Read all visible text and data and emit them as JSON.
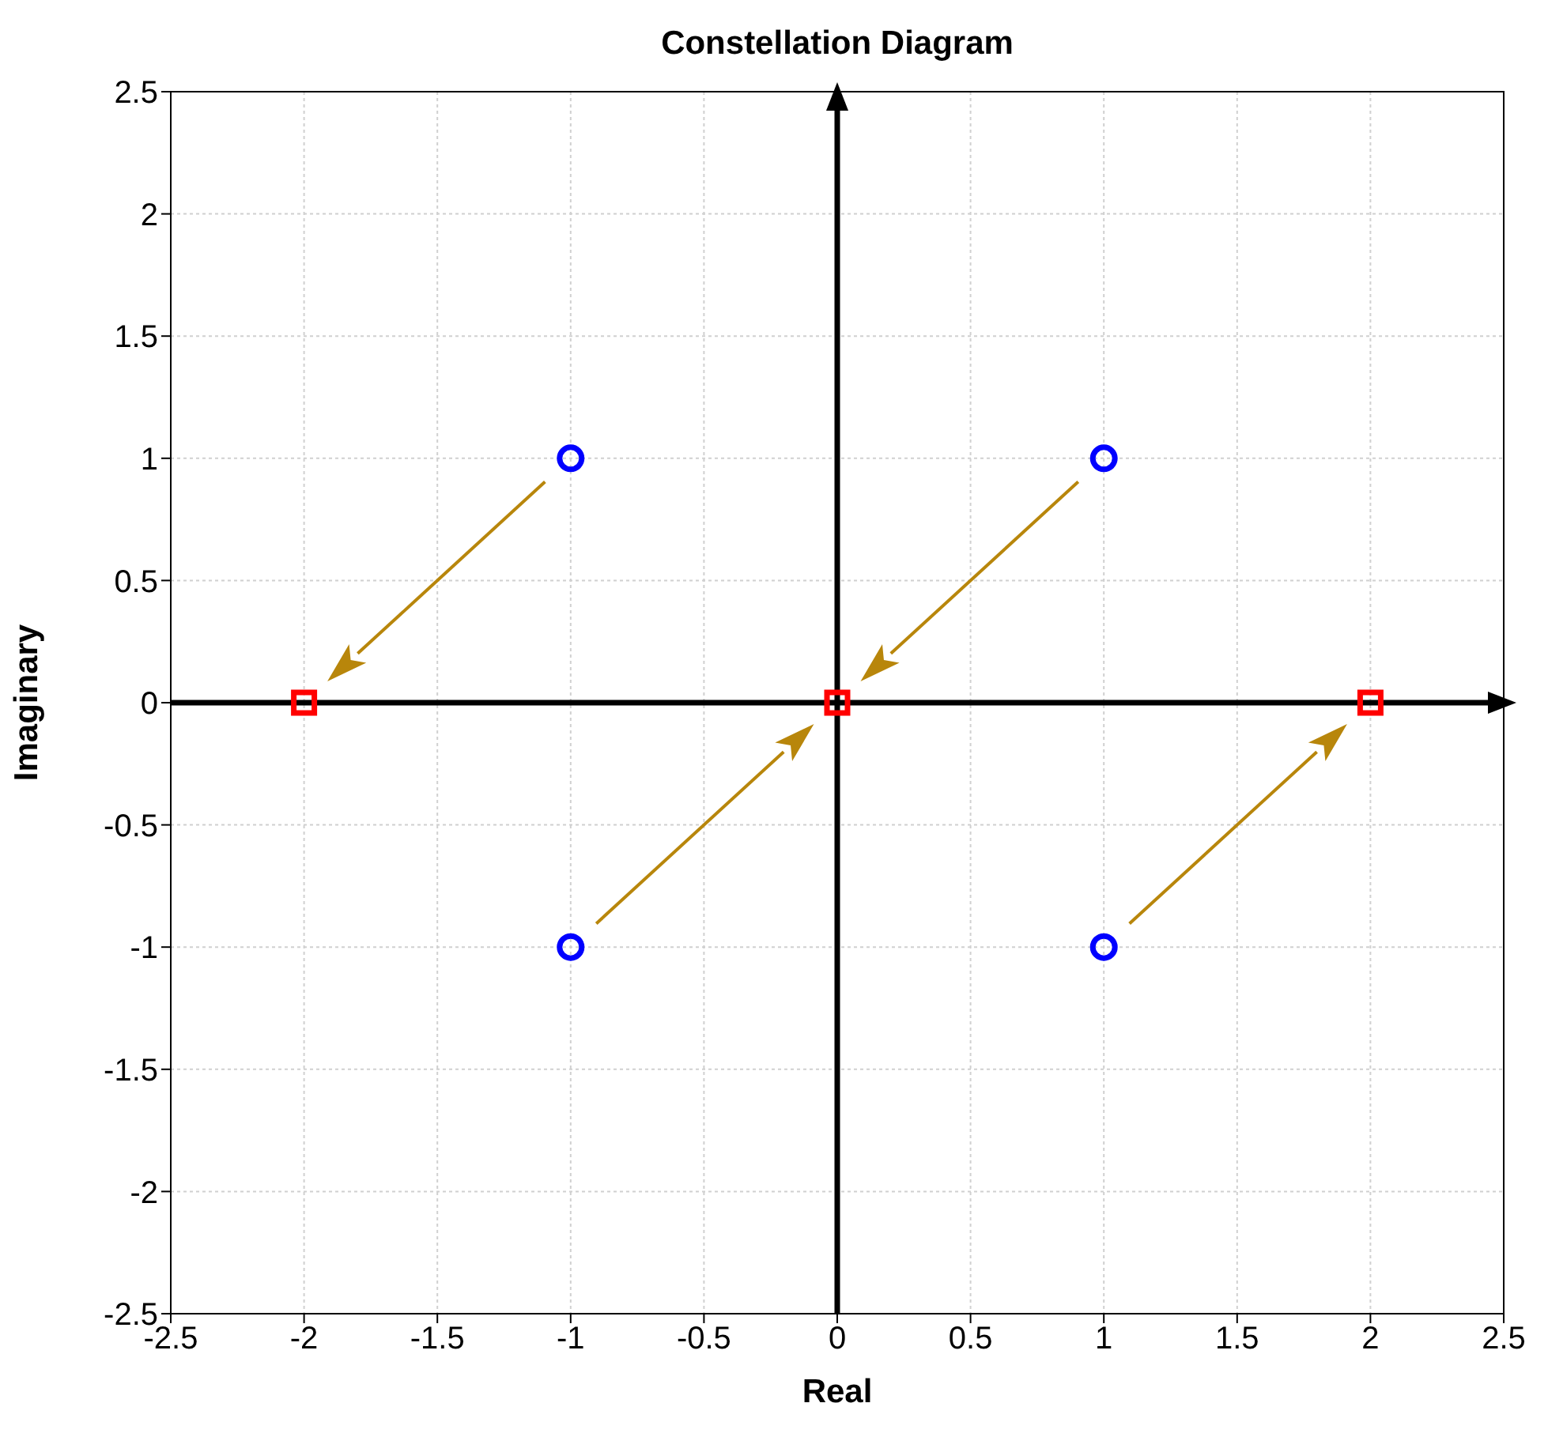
{
  "chart_data": {
    "type": "scatter",
    "title": "Constellation Diagram",
    "xlabel": "Real",
    "ylabel": "Imaginary",
    "series": [
      {
        "color": "#0000ff",
        "marker": "circle",
        "x": [
          -1,
          1,
          -1,
          1
        ],
        "values": [
          1,
          1,
          -1,
          -1
        ]
      },
      {
        "color": "#ff0000",
        "marker": "square",
        "x": [
          -2,
          0,
          2
        ],
        "values": [
          0,
          0,
          0
        ]
      }
    ],
    "xlim": [
      -2.5,
      2.5
    ],
    "ylim": [
      -2.5,
      2.5
    ],
    "xticks": [
      -2.5,
      -2,
      -1.5,
      -1,
      -0.5,
      0,
      0.5,
      1,
      1.5,
      2,
      2.5
    ],
    "yticks": [
      -2.5,
      -2,
      -1.5,
      -1,
      -0.5,
      0,
      0.5,
      1,
      1.5,
      2,
      2.5
    ],
    "grid": true,
    "legend": false
  }
}
